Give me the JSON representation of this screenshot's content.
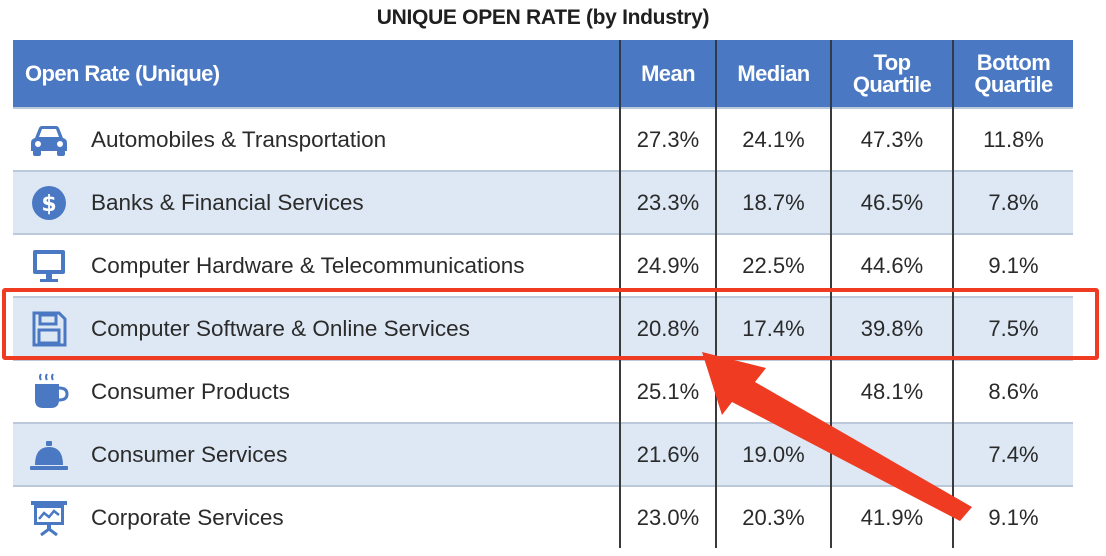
{
  "chart_data": {
    "type": "table",
    "title": "UNIQUE OPEN RATE (by Industry)",
    "columns": [
      "Open Rate (Unique)",
      "Mean",
      "Median",
      "Top Quartile",
      "Bottom Quartile"
    ],
    "rows": [
      {
        "industry": "Automobiles & Transportation",
        "icon": "car-icon",
        "mean": "27.3%",
        "median": "24.1%",
        "top": "47.3%",
        "bottom": "11.8%"
      },
      {
        "industry": "Banks & Financial Services",
        "icon": "dollar-coin-icon",
        "mean": "23.3%",
        "median": "18.7%",
        "top": "46.5%",
        "bottom": "7.8%"
      },
      {
        "industry": "Computer Hardware & Telecommunications",
        "icon": "monitor-icon",
        "mean": "24.9%",
        "median": "22.5%",
        "top": "44.6%",
        "bottom": "9.1%"
      },
      {
        "industry": "Computer Software & Online Services",
        "icon": "floppy-disk-icon",
        "mean": "20.8%",
        "median": "17.4%",
        "top": "39.8%",
        "bottom": "7.5%"
      },
      {
        "industry": "Consumer Products",
        "icon": "coffee-cup-icon",
        "mean": "25.1%",
        "median": "",
        "top": "48.1%",
        "bottom": "8.6%"
      },
      {
        "industry": "Consumer Services",
        "icon": "service-bell-icon",
        "mean": "21.6%",
        "median": "19.0%",
        "top": "",
        "bottom": "7.4%"
      },
      {
        "industry": "Corporate Services",
        "icon": "presentation-board-icon",
        "mean": "23.0%",
        "median": "20.3%",
        "top": "41.9%",
        "bottom": "9.1%"
      }
    ]
  },
  "annotation": {
    "highlighted_row": "Computer Software & Online Services",
    "color": "#ee3b22"
  },
  "colors": {
    "header_bg": "#4a78c2",
    "shaded_row": "#dde8f4",
    "icon": "#4a78c2"
  }
}
